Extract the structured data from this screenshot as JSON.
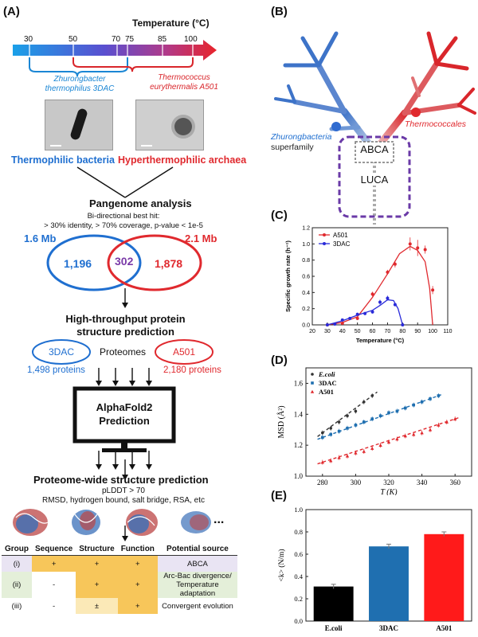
{
  "panels": {
    "a": "(A)",
    "b": "(B)",
    "c": "(C)",
    "d": "(D)",
    "e": "(E)"
  },
  "thermo": {
    "title": "Temperature (°C)",
    "ticks": [
      "30",
      "50",
      "70",
      "75",
      "85",
      "100"
    ],
    "zhurong_label_1": "Zhurongbacter",
    "zhurong_label_2": "thermophilus 3DAC",
    "thermo_label_1": "Thermococcus",
    "thermo_label_2": "eurythermalis A501"
  },
  "organisms": {
    "bacteria": "Thermophilic bacteria",
    "archaea": "Hyperthermophilic archaea"
  },
  "pangenome": {
    "title": "Pangenome analysis",
    "criteria_1": "Bi-directional best hit:",
    "criteria_2": "> 30% identity, > 70% coverage, p-value < 1e-5",
    "size_left": "1.6 Mb",
    "size_right": "2.1 Mb",
    "left_only": "1,196",
    "shared": "302",
    "right_only": "1,878"
  },
  "prediction": {
    "title_1": "High-throughput protein",
    "title_2": "structure prediction",
    "left_name": "3DAC",
    "middle": "Proteomes",
    "right_name": "A501",
    "left_count": "1,498 proteins",
    "right_count": "2,180 proteins",
    "af_1": "AlphaFold2",
    "af_2": "Prediction"
  },
  "proteome": {
    "title": "Proteome-wide structure prediction",
    "line1": "pLDDT > 70",
    "line2": "RMSD, hydrogen bound, salt bridge, RSA, etc",
    "ellipsis": "..."
  },
  "table": {
    "headers": [
      "Group",
      "Sequence",
      "Structure",
      "Function",
      "Potential source"
    ],
    "rows": [
      [
        "(i)",
        "+",
        "+",
        "+",
        "ABCA"
      ],
      [
        "(ii)",
        "-",
        "+",
        "+",
        "Arc-Bac divergence/ Temperature adaptation"
      ],
      [
        "(iii)",
        "-",
        "±",
        "+",
        "Convergent evolution"
      ]
    ]
  },
  "tree": {
    "abca": "ABCA",
    "luca": "LUCA",
    "zhurong_1": "Zhurongbacteria",
    "zhurong_2": "superfamily",
    "thermococcales": "Thermococcales",
    "colors": {
      "bacteria": "#2f6bd0",
      "archaea": "#d9262b",
      "purple": "#6a3aa7"
    }
  },
  "chart_c": {
    "type": "line",
    "ylabel": "Specific growth rate (h⁻¹)",
    "xlabel": "Temperature (°C)",
    "xlim": [
      20,
      110
    ],
    "ylim": [
      0,
      1.2
    ],
    "xticks": [
      "20",
      "30",
      "40",
      "50",
      "60",
      "70",
      "80",
      "90",
      "100",
      "110"
    ],
    "yticks": [
      "0.0",
      "0.2",
      "0.4",
      "0.6",
      "0.8",
      "1.0",
      "1.2"
    ],
    "series": [
      {
        "name": "A501",
        "color": "#e0292e",
        "x": [
          30,
          40,
          50,
          60,
          70,
          75,
          85,
          90,
          95,
          100
        ],
        "y": [
          0.0,
          0.02,
          0.08,
          0.38,
          0.65,
          0.75,
          1.0,
          0.95,
          0.93,
          0.43
        ],
        "err": [
          0,
          0.01,
          0.02,
          0.03,
          0.03,
          0.04,
          0.08,
          0.1,
          0.05,
          0.05
        ]
      },
      {
        "name": "3DAC",
        "color": "#2a2bd9",
        "x": [
          30,
          35,
          40,
          45,
          50,
          55,
          60,
          65,
          70,
          75,
          80
        ],
        "y": [
          0.0,
          0.01,
          0.06,
          0.08,
          0.13,
          0.14,
          0.16,
          0.28,
          0.33,
          0.25,
          0.0
        ],
        "err": [
          0,
          0.005,
          0.01,
          0.01,
          0.02,
          0.02,
          0.02,
          0.03,
          0.03,
          0.02,
          0
        ]
      }
    ],
    "fit_a501": [
      [
        30,
        0.0
      ],
      [
        40,
        0.03
      ],
      [
        50,
        0.1
      ],
      [
        60,
        0.34
      ],
      [
        70,
        0.63
      ],
      [
        78,
        0.88
      ],
      [
        85,
        0.97
      ],
      [
        90,
        0.92
      ],
      [
        95,
        0.78
      ],
      [
        98,
        0.45
      ],
      [
        100,
        0.0
      ]
    ],
    "fit_3dac": [
      [
        30,
        0.0
      ],
      [
        40,
        0.05
      ],
      [
        50,
        0.12
      ],
      [
        60,
        0.18
      ],
      [
        65,
        0.24
      ],
      [
        70,
        0.31
      ],
      [
        74,
        0.3
      ],
      [
        77,
        0.2
      ],
      [
        80,
        0.0
      ]
    ]
  },
  "chart_d": {
    "type": "scatter",
    "xlabel": "T (K)",
    "ylabel": "MSD (Å²)",
    "xlim": [
      270,
      370
    ],
    "ylim": [
      1.0,
      1.7
    ],
    "xticks": [
      "280",
      "300",
      "320",
      "340",
      "360"
    ],
    "yticks": [
      "1.0",
      "1.2",
      "1.4",
      "1.6"
    ],
    "series": [
      {
        "name": "E.coli",
        "color": "#333333",
        "x": [
          280,
          285,
          290,
          295,
          300,
          305,
          310
        ],
        "y": [
          1.28,
          1.31,
          1.35,
          1.39,
          1.42,
          1.48,
          1.52
        ]
      },
      {
        "name": "3DAC",
        "color": "#1f6fb0",
        "x": [
          280,
          285,
          290,
          295,
          300,
          305,
          310,
          315,
          320,
          325,
          330,
          335,
          340,
          345,
          350
        ],
        "y": [
          1.25,
          1.27,
          1.29,
          1.31,
          1.33,
          1.35,
          1.37,
          1.39,
          1.41,
          1.42,
          1.44,
          1.46,
          1.48,
          1.5,
          1.52
        ]
      },
      {
        "name": "A501",
        "color": "#e0292e",
        "x": [
          280,
          285,
          290,
          295,
          300,
          305,
          310,
          315,
          320,
          325,
          330,
          335,
          340,
          345,
          350,
          355,
          360
        ],
        "y": [
          1.09,
          1.1,
          1.12,
          1.13,
          1.15,
          1.16,
          1.18,
          1.2,
          1.22,
          1.24,
          1.26,
          1.27,
          1.28,
          1.3,
          1.33,
          1.35,
          1.37
        ]
      }
    ]
  },
  "chart_e": {
    "type": "bar",
    "ylabel": "<k> (N/m)",
    "categories": [
      "E.coli",
      "3DAC",
      "A501"
    ],
    "values": [
      0.31,
      0.67,
      0.78
    ],
    "colors": [
      "#000000",
      "#1f6fb0",
      "#ff1a1a"
    ],
    "ylim": [
      0,
      1.0
    ],
    "yticks": [
      "0.0",
      "0.2",
      "0.4",
      "0.6",
      "0.8",
      "1.0"
    ]
  }
}
